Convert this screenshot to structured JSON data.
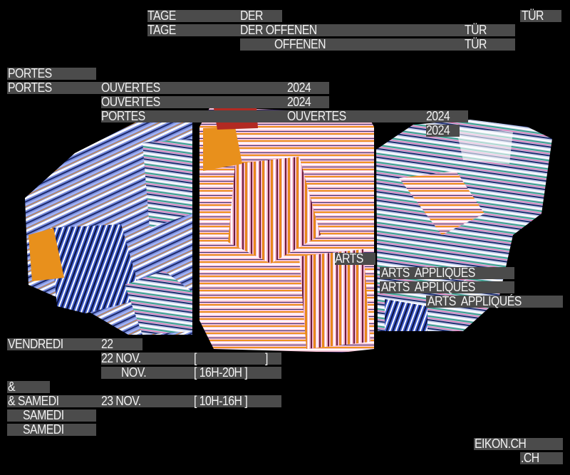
{
  "german": {
    "l1": {
      "a": "TAGE",
      "b": "DER",
      "c": "TÜR"
    },
    "l2": {
      "a": "TAGE",
      "b": "DER OFFENEN",
      "c": "TÜR"
    },
    "l3": {
      "b": "OFFENEN",
      "c": "TÜR"
    }
  },
  "french": {
    "l1": {
      "a": "PORTES"
    },
    "l2": {
      "a": "PORTES",
      "b": "OUVERTES",
      "c": "2024"
    },
    "l3": {
      "b": "OUVERTES",
      "c": "2024"
    },
    "l4": {
      "a": "PORTES",
      "b": "OUVERTES",
      "c": "2024"
    },
    "l5": {
      "c": "2024"
    }
  },
  "arts": {
    "l1": "ARTS",
    "l2": "ARTS  APPLIQUÉS",
    "l3": "ARTS  APPLIQUÉS",
    "l4": "ARTS  APPLIQUÉS"
  },
  "dates": {
    "l1": {
      "a": "VENDREDI",
      "b": "22"
    },
    "l2": {
      "b": "22 NOV.",
      "c1": "[",
      "c2": "]"
    },
    "l3": {
      "b": "NOV.",
      "c": "[ 16H-20H ]"
    },
    "l4": {
      "a": "&"
    },
    "l5": {
      "a": "& SAMEDI",
      "b": "23 NOV.",
      "c": "[ 10H-16H ]"
    },
    "l6": {
      "a": "SAMEDI"
    },
    "l7": {
      "a": "SAMEDI"
    }
  },
  "website": {
    "l1": "EIKON.CH",
    "l2": ".CH"
  },
  "colors": {
    "background": "#000000",
    "bar": "#4b4b4b",
    "text": "#f2f2f2"
  }
}
